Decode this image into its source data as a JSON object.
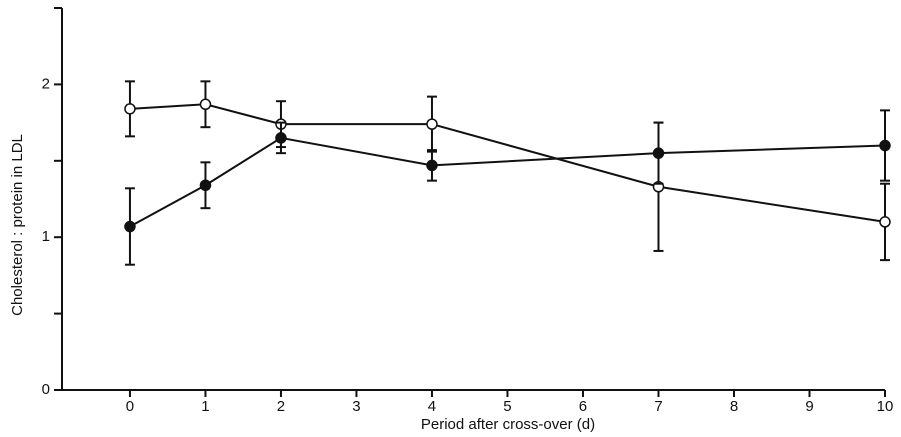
{
  "chart_data": {
    "type": "line",
    "y_label": "Cholesterol : protein in LDL",
    "x_label": "Period after cross-over (d)",
    "x": [
      0,
      1,
      2,
      4,
      7,
      10
    ],
    "series": [
      {
        "color": "#111111",
        "marker": "open",
        "values": [
          1.84,
          1.87,
          1.74,
          1.74,
          1.33,
          1.1
        ],
        "errors": [
          0.18,
          0.15,
          0.15,
          0.18,
          0.42,
          0.25
        ]
      },
      {
        "color": "#111111",
        "marker": "filled",
        "values": [
          1.07,
          1.34,
          1.65,
          1.47,
          1.55,
          1.6
        ],
        "errors": [
          0.25,
          0.15,
          0.1,
          0.1,
          0.2,
          0.23
        ]
      }
    ],
    "xlim": [
      -0.9,
      10
    ],
    "xticks": [
      0,
      1,
      2,
      3,
      4,
      5,
      6,
      7,
      8,
      9,
      10
    ],
    "ylim": [
      0,
      2.5
    ],
    "yticks": [
      0,
      1,
      2
    ],
    "minor_yticks": [
      0.5,
      1.5,
      2.5
    ],
    "grid": false
  }
}
